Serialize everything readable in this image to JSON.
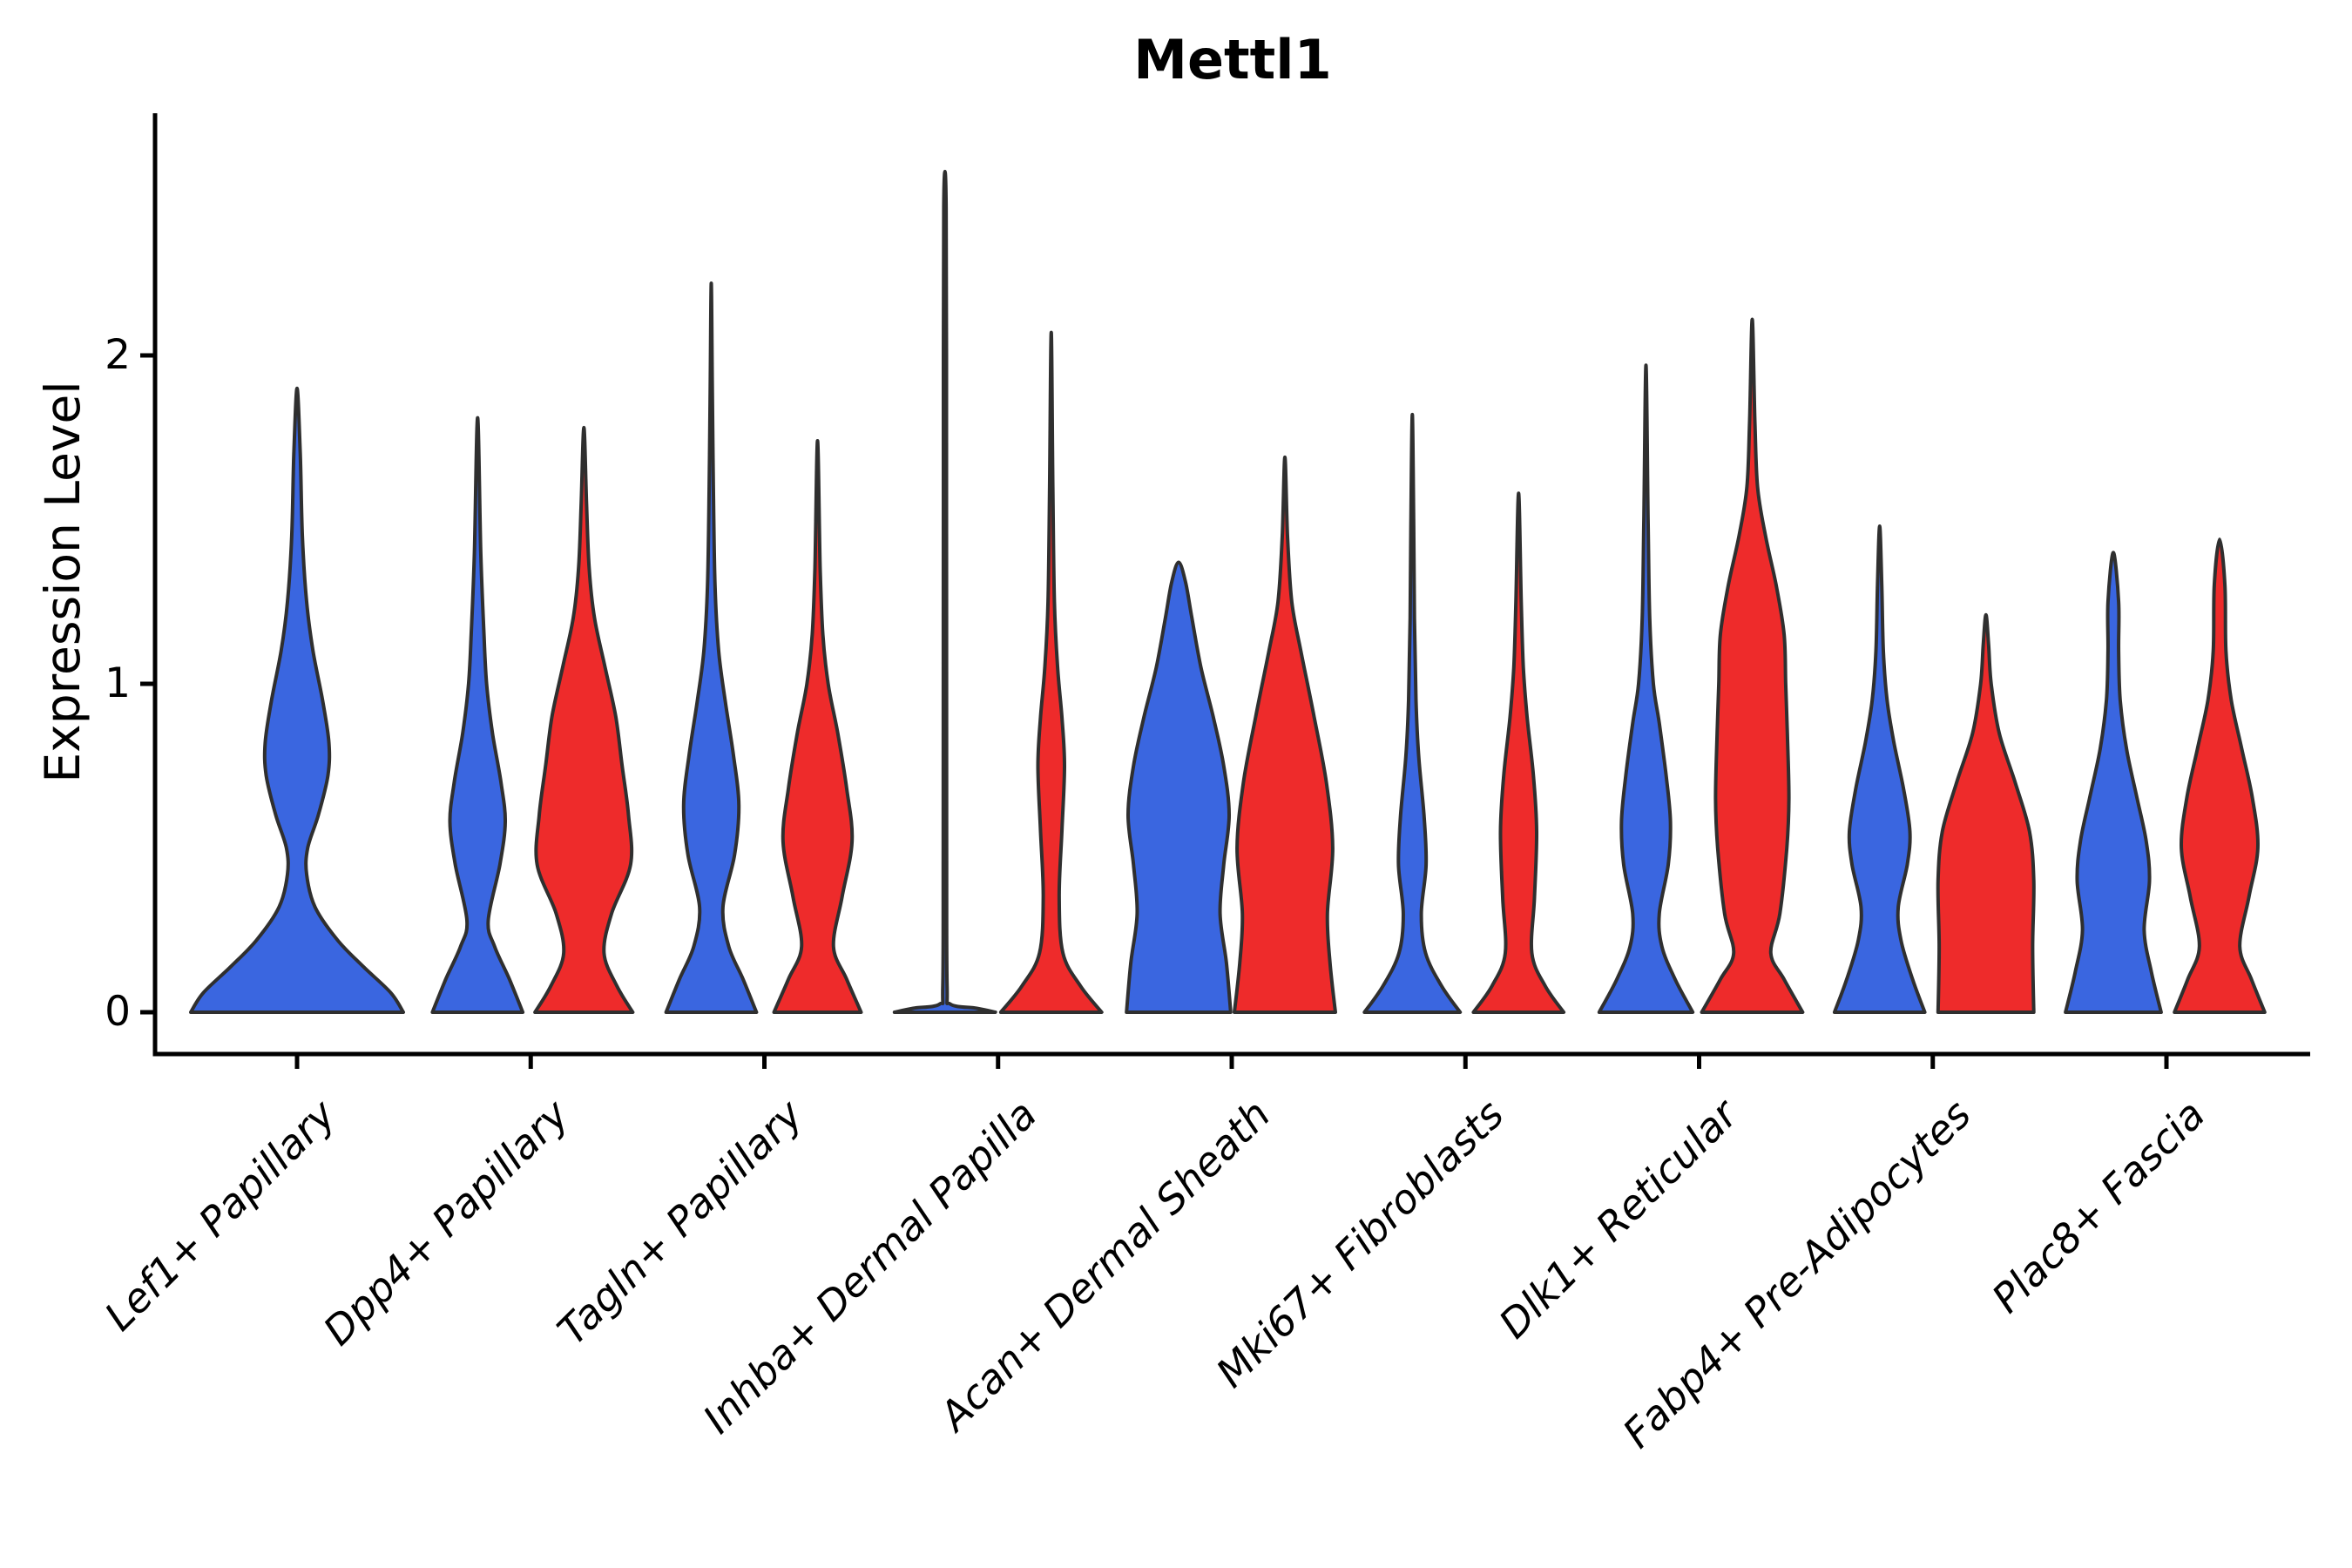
{
  "title": "Mettl1",
  "axes": {
    "y": {
      "label": "Expression Level",
      "ticks": [
        "0",
        "1",
        "2"
      ]
    },
    "x": {
      "categories": [
        "Lef1+ Papillary",
        "Dpp4+ Papillary",
        "Tagln+ Papillary",
        "Inhba+ Dermal Papilla",
        "Acan+ Dermal Sheath",
        "Mki67+ Fibroblasts",
        "Dlk1+ Reticular",
        "Fabp4+ Pre-Adipocytes",
        "Plac8+ Fascia"
      ]
    }
  },
  "chart_data": {
    "type": "violin",
    "title": "Mettl1",
    "xlabel": "",
    "ylabel": "Expression Level",
    "yticks": [
      0,
      1,
      2
    ],
    "ylim": [
      -0.13,
      2.74
    ],
    "grid": false,
    "legend": "none",
    "colors": {
      "blue": "#3A66E0",
      "red": "#EE2B2B",
      "outline": "#2F2F2F",
      "axis": "#000000"
    },
    "categories": [
      "Lef1+ Papillary",
      "Dpp4+ Papillary",
      "Tagln+ Papillary",
      "Inhba+ Dermal Papilla",
      "Acan+ Dermal Sheath",
      "Mki67+ Fibroblasts",
      "Dlk1+ Reticular",
      "Fabp4+ Pre-Adipocytes",
      "Plac8+ Fascia"
    ],
    "violins": [
      {
        "cat": 0,
        "color": "blue",
        "side": "center",
        "max": 1.9,
        "profile": [
          [
            0,
            1.0
          ],
          [
            0.06,
            0.88
          ],
          [
            0.14,
            0.62
          ],
          [
            0.22,
            0.38
          ],
          [
            0.32,
            0.17
          ],
          [
            0.42,
            0.09
          ],
          [
            0.5,
            0.1
          ],
          [
            0.6,
            0.2
          ],
          [
            0.72,
            0.29
          ],
          [
            0.82,
            0.3
          ],
          [
            0.95,
            0.24
          ],
          [
            1.1,
            0.15
          ],
          [
            1.25,
            0.09
          ],
          [
            1.45,
            0.05
          ],
          [
            1.7,
            0.03
          ],
          [
            1.9,
            0
          ]
        ]
      },
      {
        "cat": 1,
        "color": "blue",
        "side": "left",
        "max": 1.81,
        "profile": [
          [
            0,
            0.85
          ],
          [
            0.1,
            0.6
          ],
          [
            0.2,
            0.32
          ],
          [
            0.28,
            0.2
          ],
          [
            0.45,
            0.42
          ],
          [
            0.58,
            0.52
          ],
          [
            0.7,
            0.44
          ],
          [
            0.85,
            0.28
          ],
          [
            1.0,
            0.17
          ],
          [
            1.15,
            0.12
          ],
          [
            1.4,
            0.06
          ],
          [
            1.81,
            0
          ]
        ]
      },
      {
        "cat": 1,
        "color": "red",
        "side": "right",
        "max": 1.78,
        "profile": [
          [
            0,
            0.92
          ],
          [
            0.08,
            0.62
          ],
          [
            0.18,
            0.38
          ],
          [
            0.3,
            0.52
          ],
          [
            0.45,
            0.88
          ],
          [
            0.6,
            0.84
          ],
          [
            0.75,
            0.72
          ],
          [
            0.9,
            0.6
          ],
          [
            1.05,
            0.4
          ],
          [
            1.2,
            0.2
          ],
          [
            1.35,
            0.1
          ],
          [
            1.55,
            0.05
          ],
          [
            1.78,
            0
          ]
        ]
      },
      {
        "cat": 2,
        "color": "blue",
        "side": "left",
        "max": 2.22,
        "profile": [
          [
            0,
            0.85
          ],
          [
            0.1,
            0.6
          ],
          [
            0.2,
            0.33
          ],
          [
            0.32,
            0.22
          ],
          [
            0.48,
            0.44
          ],
          [
            0.63,
            0.52
          ],
          [
            0.78,
            0.42
          ],
          [
            0.95,
            0.26
          ],
          [
            1.1,
            0.14
          ],
          [
            1.3,
            0.07
          ],
          [
            1.6,
            0.04
          ],
          [
            1.9,
            0.02
          ],
          [
            2.22,
            0
          ]
        ]
      },
      {
        "cat": 2,
        "color": "red",
        "side": "right",
        "max": 1.74,
        "profile": [
          [
            0,
            0.82
          ],
          [
            0.1,
            0.55
          ],
          [
            0.2,
            0.3
          ],
          [
            0.35,
            0.46
          ],
          [
            0.52,
            0.65
          ],
          [
            0.68,
            0.55
          ],
          [
            0.85,
            0.38
          ],
          [
            1.0,
            0.2
          ],
          [
            1.15,
            0.1
          ],
          [
            1.35,
            0.05
          ],
          [
            1.74,
            0
          ]
        ]
      },
      {
        "cat": 3,
        "color": "blue",
        "side": "left",
        "max": 2.56,
        "profile": [
          [
            0,
            0.95
          ],
          [
            0.012,
            0.6
          ],
          [
            0.025,
            0.1
          ],
          [
            0.08,
            0.04
          ],
          [
            0.5,
            0.032
          ],
          [
            1.2,
            0.03
          ],
          [
            2.0,
            0.028
          ],
          [
            2.45,
            0.022
          ],
          [
            2.56,
            0
          ]
        ]
      },
      {
        "cat": 3,
        "color": "red",
        "side": "right",
        "max": 2.07,
        "profile": [
          [
            0,
            0.95
          ],
          [
            0.08,
            0.55
          ],
          [
            0.18,
            0.22
          ],
          [
            0.35,
            0.15
          ],
          [
            0.55,
            0.2
          ],
          [
            0.75,
            0.25
          ],
          [
            0.9,
            0.2
          ],
          [
            1.05,
            0.12
          ],
          [
            1.25,
            0.06
          ],
          [
            1.6,
            0.03
          ],
          [
            2.07,
            0
          ]
        ]
      },
      {
        "cat": 4,
        "color": "blue",
        "side": "left",
        "max": 1.37,
        "profile": [
          [
            0,
            0.98
          ],
          [
            0.15,
            0.9
          ],
          [
            0.3,
            0.78
          ],
          [
            0.45,
            0.85
          ],
          [
            0.6,
            0.95
          ],
          [
            0.75,
            0.85
          ],
          [
            0.9,
            0.65
          ],
          [
            1.05,
            0.42
          ],
          [
            1.2,
            0.25
          ],
          [
            1.31,
            0.13
          ],
          [
            1.37,
            0
          ]
        ]
      },
      {
        "cat": 4,
        "color": "red",
        "side": "right",
        "max": 1.69,
        "profile": [
          [
            0,
            0.95
          ],
          [
            0.15,
            0.85
          ],
          [
            0.3,
            0.8
          ],
          [
            0.5,
            0.9
          ],
          [
            0.7,
            0.78
          ],
          [
            0.9,
            0.55
          ],
          [
            1.1,
            0.3
          ],
          [
            1.25,
            0.13
          ],
          [
            1.45,
            0.05
          ],
          [
            1.69,
            0
          ]
        ]
      },
      {
        "cat": 5,
        "color": "blue",
        "side": "left",
        "max": 1.82,
        "profile": [
          [
            0,
            0.9
          ],
          [
            0.08,
            0.55
          ],
          [
            0.18,
            0.25
          ],
          [
            0.3,
            0.17
          ],
          [
            0.45,
            0.26
          ],
          [
            0.6,
            0.22
          ],
          [
            0.78,
            0.12
          ],
          [
            0.95,
            0.07
          ],
          [
            1.2,
            0.04
          ],
          [
            1.5,
            0.025
          ],
          [
            1.82,
            0
          ]
        ]
      },
      {
        "cat": 5,
        "color": "red",
        "side": "right",
        "max": 1.58,
        "profile": [
          [
            0,
            0.85
          ],
          [
            0.08,
            0.5
          ],
          [
            0.18,
            0.25
          ],
          [
            0.35,
            0.3
          ],
          [
            0.55,
            0.34
          ],
          [
            0.72,
            0.28
          ],
          [
            0.9,
            0.16
          ],
          [
            1.05,
            0.09
          ],
          [
            1.25,
            0.05
          ],
          [
            1.58,
            0
          ]
        ]
      },
      {
        "cat": 6,
        "color": "blue",
        "side": "left",
        "max": 1.97,
        "profile": [
          [
            0,
            0.88
          ],
          [
            0.1,
            0.55
          ],
          [
            0.2,
            0.3
          ],
          [
            0.3,
            0.25
          ],
          [
            0.45,
            0.42
          ],
          [
            0.58,
            0.46
          ],
          [
            0.72,
            0.38
          ],
          [
            0.88,
            0.25
          ],
          [
            1.0,
            0.14
          ],
          [
            1.2,
            0.07
          ],
          [
            1.5,
            0.04
          ],
          [
            1.97,
            0
          ]
        ]
      },
      {
        "cat": 6,
        "color": "red",
        "side": "right",
        "max": 2.11,
        "profile": [
          [
            0,
            0.95
          ],
          [
            0.1,
            0.6
          ],
          [
            0.18,
            0.35
          ],
          [
            0.3,
            0.52
          ],
          [
            0.5,
            0.65
          ],
          [
            0.65,
            0.69
          ],
          [
            0.85,
            0.66
          ],
          [
            1.0,
            0.63
          ],
          [
            1.15,
            0.6
          ],
          [
            1.3,
            0.45
          ],
          [
            1.45,
            0.25
          ],
          [
            1.6,
            0.1
          ],
          [
            1.8,
            0.05
          ],
          [
            2.11,
            0
          ]
        ]
      },
      {
        "cat": 7,
        "color": "blue",
        "side": "left",
        "max": 1.48,
        "profile": [
          [
            0,
            0.85
          ],
          [
            0.1,
            0.62
          ],
          [
            0.22,
            0.4
          ],
          [
            0.32,
            0.35
          ],
          [
            0.45,
            0.52
          ],
          [
            0.55,
            0.57
          ],
          [
            0.68,
            0.45
          ],
          [
            0.82,
            0.27
          ],
          [
            0.95,
            0.14
          ],
          [
            1.1,
            0.07
          ],
          [
            1.3,
            0.04
          ],
          [
            1.48,
            0
          ]
        ]
      },
      {
        "cat": 7,
        "color": "red",
        "side": "right",
        "max": 1.21,
        "profile": [
          [
            0,
            0.9
          ],
          [
            0.2,
            0.88
          ],
          [
            0.4,
            0.9
          ],
          [
            0.55,
            0.82
          ],
          [
            0.7,
            0.55
          ],
          [
            0.85,
            0.25
          ],
          [
            1.0,
            0.1
          ],
          [
            1.12,
            0.05
          ],
          [
            1.21,
            0
          ]
        ]
      },
      {
        "cat": 8,
        "color": "blue",
        "side": "left",
        "max": 1.4,
        "profile": [
          [
            0,
            0.9
          ],
          [
            0.12,
            0.72
          ],
          [
            0.25,
            0.58
          ],
          [
            0.4,
            0.68
          ],
          [
            0.52,
            0.62
          ],
          [
            0.65,
            0.45
          ],
          [
            0.8,
            0.25
          ],
          [
            0.95,
            0.13
          ],
          [
            1.1,
            0.1
          ],
          [
            1.25,
            0.1
          ],
          [
            1.4,
            0
          ]
        ]
      },
      {
        "cat": 8,
        "color": "red",
        "side": "right",
        "max": 1.44,
        "profile": [
          [
            0,
            0.85
          ],
          [
            0.1,
            0.6
          ],
          [
            0.2,
            0.38
          ],
          [
            0.35,
            0.55
          ],
          [
            0.5,
            0.72
          ],
          [
            0.65,
            0.62
          ],
          [
            0.8,
            0.42
          ],
          [
            0.95,
            0.22
          ],
          [
            1.1,
            0.12
          ],
          [
            1.3,
            0.1
          ],
          [
            1.44,
            0
          ]
        ]
      }
    ]
  }
}
